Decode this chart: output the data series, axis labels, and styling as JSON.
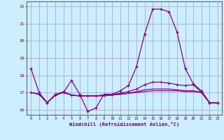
{
  "xlabel": "Windchill (Refroidissement éolien,°C)",
  "bg_color": "#cceeff",
  "grid_color": "#aaaacc",
  "line_color": "#880088",
  "x": [
    0,
    1,
    2,
    3,
    4,
    5,
    6,
    7,
    8,
    9,
    10,
    11,
    12,
    13,
    14,
    15,
    16,
    17,
    18,
    19,
    20,
    21,
    22,
    23
  ],
  "line1": [
    18.4,
    17.0,
    16.4,
    16.9,
    17.0,
    17.7,
    16.9,
    15.9,
    16.1,
    16.9,
    16.9,
    17.1,
    17.4,
    18.5,
    20.4,
    21.85,
    21.85,
    21.7,
    20.5,
    18.4,
    17.5,
    17.1,
    16.4,
    16.4
  ],
  "line2": [
    17.0,
    16.9,
    16.4,
    16.85,
    17.05,
    16.85,
    16.8,
    16.8,
    16.8,
    16.85,
    16.9,
    16.95,
    17.05,
    17.2,
    17.45,
    17.6,
    17.6,
    17.55,
    17.45,
    17.4,
    17.45,
    17.0,
    16.4,
    16.4
  ],
  "line3": [
    17.0,
    16.9,
    16.4,
    16.85,
    17.0,
    16.85,
    16.8,
    16.8,
    16.8,
    16.85,
    16.85,
    16.9,
    16.95,
    17.05,
    17.15,
    17.2,
    17.2,
    17.2,
    17.15,
    17.1,
    17.1,
    17.0,
    16.4,
    16.4
  ],
  "line4": [
    17.0,
    16.9,
    16.4,
    16.85,
    17.0,
    16.85,
    16.8,
    16.8,
    16.8,
    16.8,
    16.85,
    16.9,
    16.95,
    17.0,
    17.05,
    17.1,
    17.1,
    17.1,
    17.1,
    17.05,
    17.05,
    17.0,
    16.4,
    16.4
  ],
  "ylim": [
    15.7,
    22.3
  ],
  "xlim": [
    -0.5,
    23.5
  ],
  "yticks": [
    16,
    17,
    18,
    19,
    20,
    21,
    22
  ],
  "xticks": [
    0,
    1,
    2,
    3,
    4,
    5,
    6,
    7,
    8,
    9,
    10,
    11,
    12,
    13,
    14,
    15,
    16,
    17,
    18,
    19,
    20,
    21,
    22,
    23
  ]
}
